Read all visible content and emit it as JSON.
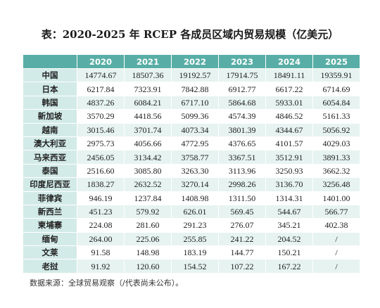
{
  "title": "表：2020-2025 年 RCEP 各成员区域内贸易规模（亿美元）",
  "table": {
    "columns": [
      "2020",
      "2021",
      "2022",
      "2023",
      "2024",
      "2025"
    ],
    "rows": [
      [
        "中国",
        "14774.67",
        "18507.36",
        "19192.57",
        "17914.75",
        "18491.11",
        "19359.91"
      ],
      [
        "日本",
        "6217.84",
        "7323.91",
        "7842.88",
        "6912.77",
        "6617.22",
        "6714.69"
      ],
      [
        "韩国",
        "4837.26",
        "6084.21",
        "6717.10",
        "5864.68",
        "5933.01",
        "6054.84"
      ],
      [
        "新加坡",
        "3570.29",
        "4418.56",
        "5099.36",
        "4574.39",
        "4846.52",
        "5161.33"
      ],
      [
        "越南",
        "3015.46",
        "3701.74",
        "4073.34",
        "3801.39",
        "4344.67",
        "5056.92"
      ],
      [
        "澳大利亚",
        "2975.73",
        "4056.66",
        "4772.95",
        "4376.65",
        "4101.57",
        "4029.03"
      ],
      [
        "马来西亚",
        "2456.05",
        "3134.42",
        "3758.77",
        "3367.51",
        "3512.91",
        "3891.33"
      ],
      [
        "泰国",
        "2516.60",
        "3085.80",
        "3263.30",
        "3113.96",
        "3250.93",
        "3662.32"
      ],
      [
        "印度尼西亚",
        "1838.27",
        "2632.52",
        "3270.14",
        "2998.26",
        "3136.70",
        "3256.48"
      ],
      [
        "菲律宾",
        "946.19",
        "1237.84",
        "1408.98",
        "1311.50",
        "1314.31",
        "1401.00"
      ],
      [
        "新西兰",
        "451.23",
        "579.92",
        "626.01",
        "569.45",
        "544.67",
        "566.77"
      ],
      [
        "柬埔寨",
        "224.08",
        "281.60",
        "291.23",
        "276.07",
        "345.21",
        "402.38"
      ],
      [
        "缅甸",
        "264.00",
        "225.06",
        "255.85",
        "241.22",
        "204.52",
        "/"
      ],
      [
        "文莱",
        "91.58",
        "148.98",
        "183.19",
        "144.77",
        "150.21",
        "/"
      ],
      [
        "老挝",
        "91.92",
        "120.60",
        "154.52",
        "107.22",
        "167.22",
        "/"
      ]
    ]
  },
  "note": "数据来源：全球贸易观察（/代表尚未公布）。"
}
